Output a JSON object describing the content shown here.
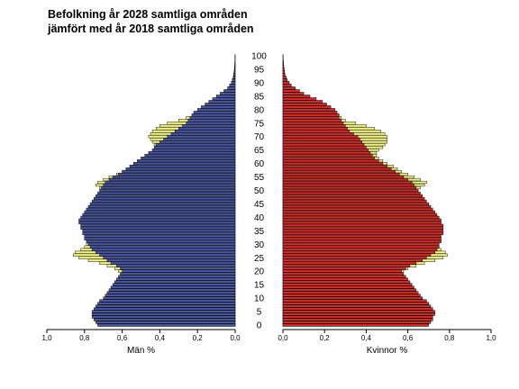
{
  "chart_data": {
    "type": "bar",
    "title_line1": "Befolkning år 2028 samtliga områden",
    "title_line2": "jämfört med år 2018 samtliga områden",
    "left_label": "Män %",
    "right_label": "Kvinnor %",
    "x_ticks_left": [
      "1,0",
      "0,8",
      "0,6",
      "0,4",
      "0,2",
      "0,0"
    ],
    "x_ticks_right": [
      "0,0",
      "0,2",
      "0,4",
      "0,6",
      "0,8",
      "1,0"
    ],
    "age_labels": [
      "0",
      "5",
      "10",
      "15",
      "20",
      "25",
      "30",
      "35",
      "40",
      "45",
      "50",
      "55",
      "60",
      "65",
      "70",
      "75",
      "80",
      "85",
      "90",
      "95",
      "100"
    ],
    "xlim": [
      0,
      1.0
    ],
    "age_range": [
      0,
      100
    ],
    "colors": {
      "men": "#4a5699",
      "women": "#c8302c",
      "comparison": "#f2f28a",
      "stroke": "#000000"
    },
    "series": [
      {
        "name": "Män %",
        "year": "2028",
        "side": "left",
        "color": "#4a5699",
        "values": [
          0.73,
          0.74,
          0.75,
          0.76,
          0.76,
          0.76,
          0.75,
          0.74,
          0.73,
          0.72,
          0.7,
          0.69,
          0.68,
          0.67,
          0.66,
          0.65,
          0.64,
          0.63,
          0.62,
          0.61,
          0.6,
          0.61,
          0.63,
          0.66,
          0.68,
          0.7,
          0.72,
          0.74,
          0.76,
          0.77,
          0.78,
          0.79,
          0.8,
          0.8,
          0.81,
          0.81,
          0.82,
          0.82,
          0.83,
          0.83,
          0.82,
          0.81,
          0.8,
          0.79,
          0.78,
          0.77,
          0.76,
          0.75,
          0.74,
          0.73,
          0.72,
          0.71,
          0.7,
          0.69,
          0.67,
          0.65,
          0.62,
          0.6,
          0.58,
          0.56,
          0.54,
          0.52,
          0.5,
          0.48,
          0.46,
          0.44,
          0.43,
          0.42,
          0.4,
          0.38,
          0.36,
          0.34,
          0.32,
          0.3,
          0.28,
          0.26,
          0.25,
          0.24,
          0.23,
          0.22,
          0.2,
          0.18,
          0.16,
          0.14,
          0.12,
          0.1,
          0.08,
          0.06,
          0.04,
          0.03,
          0.02,
          0.015,
          0.01,
          0.008,
          0.006,
          0.004,
          0.003,
          0.002,
          0.001,
          0.001,
          0.001
        ]
      },
      {
        "name": "Män %",
        "year": "2018",
        "side": "left",
        "color": "#f2f28a",
        "values": [
          0.72,
          0.73,
          0.74,
          0.75,
          0.75,
          0.75,
          0.74,
          0.73,
          0.72,
          0.71,
          0.69,
          0.68,
          0.67,
          0.66,
          0.65,
          0.64,
          0.63,
          0.62,
          0.61,
          0.6,
          0.62,
          0.64,
          0.68,
          0.72,
          0.78,
          0.83,
          0.86,
          0.85,
          0.82,
          0.8,
          0.79,
          0.78,
          0.78,
          0.79,
          0.8,
          0.8,
          0.81,
          0.81,
          0.82,
          0.82,
          0.81,
          0.8,
          0.79,
          0.78,
          0.77,
          0.76,
          0.75,
          0.74,
          0.73,
          0.72,
          0.71,
          0.72,
          0.74,
          0.73,
          0.7,
          0.67,
          0.63,
          0.6,
          0.57,
          0.55,
          0.52,
          0.5,
          0.48,
          0.46,
          0.44,
          0.43,
          0.42,
          0.43,
          0.44,
          0.45,
          0.46,
          0.45,
          0.44,
          0.42,
          0.4,
          0.36,
          0.3,
          0.26,
          0.22,
          0.2,
          0.18,
          0.16,
          0.14,
          0.12,
          0.1,
          0.08,
          0.06,
          0.05,
          0.04,
          0.03,
          0.02,
          0.015,
          0.01,
          0.008,
          0.006,
          0.004,
          0.003,
          0.002,
          0.001,
          0.001,
          0.001
        ]
      },
      {
        "name": "Kvinnor %",
        "year": "2028",
        "side": "right",
        "color": "#c8302c",
        "values": [
          0.7,
          0.71,
          0.72,
          0.72,
          0.73,
          0.73,
          0.72,
          0.71,
          0.7,
          0.69,
          0.67,
          0.66,
          0.65,
          0.64,
          0.63,
          0.62,
          0.61,
          0.6,
          0.59,
          0.58,
          0.57,
          0.59,
          0.61,
          0.64,
          0.67,
          0.69,
          0.71,
          0.73,
          0.74,
          0.75,
          0.75,
          0.76,
          0.76,
          0.76,
          0.77,
          0.77,
          0.77,
          0.77,
          0.76,
          0.76,
          0.75,
          0.74,
          0.73,
          0.72,
          0.71,
          0.7,
          0.69,
          0.68,
          0.67,
          0.66,
          0.65,
          0.64,
          0.63,
          0.62,
          0.6,
          0.58,
          0.56,
          0.54,
          0.52,
          0.5,
          0.48,
          0.46,
          0.44,
          0.43,
          0.42,
          0.41,
          0.4,
          0.39,
          0.38,
          0.37,
          0.36,
          0.34,
          0.32,
          0.31,
          0.3,
          0.29,
          0.28,
          0.27,
          0.27,
          0.26,
          0.25,
          0.23,
          0.21,
          0.19,
          0.16,
          0.13,
          0.1,
          0.08,
          0.06,
          0.04,
          0.03,
          0.02,
          0.015,
          0.01,
          0.008,
          0.006,
          0.004,
          0.003,
          0.002,
          0.001,
          0.001
        ]
      },
      {
        "name": "Kvinnor %",
        "year": "2018",
        "side": "right",
        "color": "#f2f28a",
        "values": [
          0.69,
          0.7,
          0.71,
          0.71,
          0.72,
          0.72,
          0.71,
          0.7,
          0.69,
          0.68,
          0.66,
          0.65,
          0.64,
          0.63,
          0.62,
          0.61,
          0.6,
          0.59,
          0.58,
          0.57,
          0.58,
          0.6,
          0.64,
          0.68,
          0.73,
          0.77,
          0.79,
          0.78,
          0.76,
          0.75,
          0.74,
          0.74,
          0.75,
          0.75,
          0.76,
          0.76,
          0.76,
          0.76,
          0.75,
          0.75,
          0.74,
          0.73,
          0.72,
          0.71,
          0.7,
          0.69,
          0.68,
          0.67,
          0.66,
          0.65,
          0.64,
          0.66,
          0.68,
          0.69,
          0.66,
          0.63,
          0.6,
          0.57,
          0.55,
          0.53,
          0.5,
          0.48,
          0.46,
          0.45,
          0.45,
          0.46,
          0.48,
          0.49,
          0.5,
          0.5,
          0.5,
          0.49,
          0.47,
          0.44,
          0.4,
          0.35,
          0.3,
          0.28,
          0.26,
          0.24,
          0.22,
          0.2,
          0.18,
          0.15,
          0.12,
          0.1,
          0.08,
          0.06,
          0.05,
          0.04,
          0.03,
          0.02,
          0.015,
          0.01,
          0.008,
          0.006,
          0.004,
          0.003,
          0.002,
          0.001,
          0.001
        ]
      }
    ]
  }
}
